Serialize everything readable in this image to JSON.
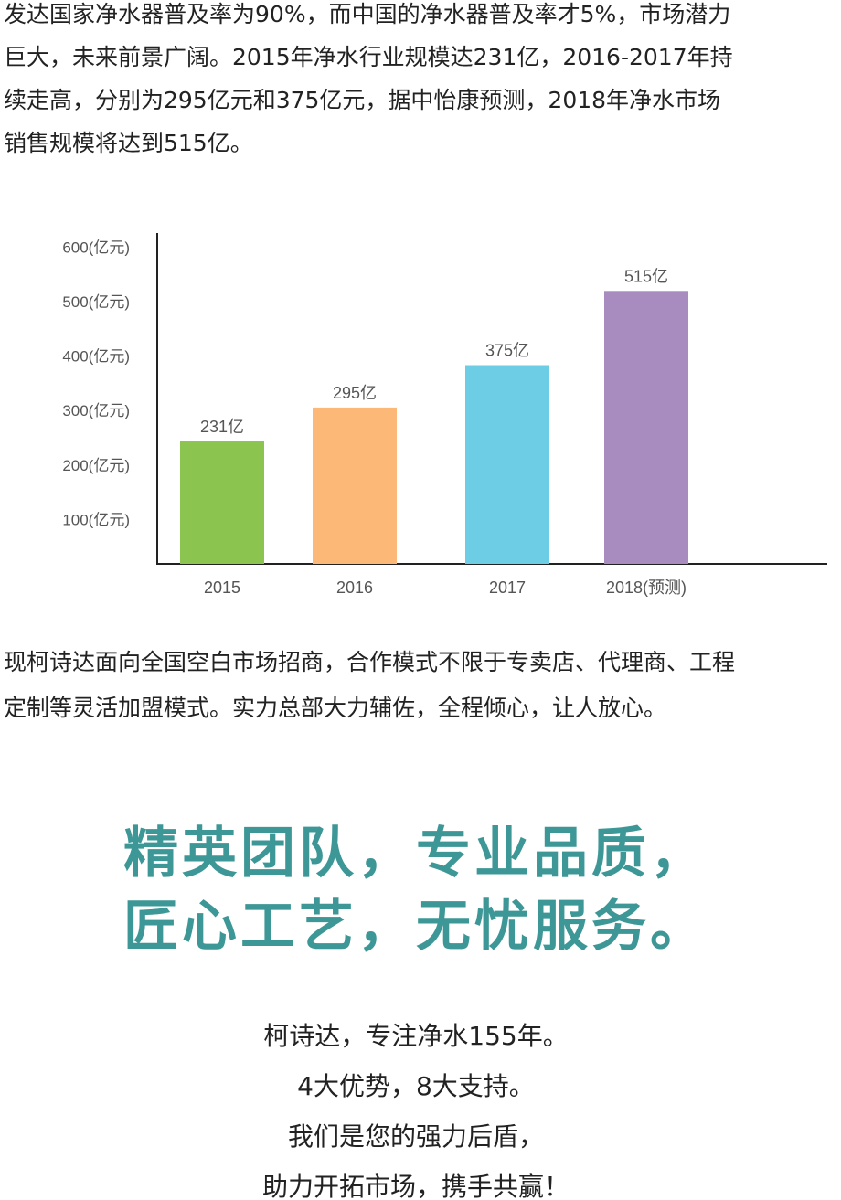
{
  "intro": {
    "lines": [
      "发达国家净水器普及率为90%，而中国的净水器普及率才5%，市场潜力",
      "巨大，未来前景广阔。2015年净水行业规模达231亿，2016-2017年持",
      "续走高，分别为295亿元和375亿元，据中怡康预测，2018年净水市场",
      "销售规模将达到515亿。"
    ]
  },
  "chart_data": {
    "type": "bar",
    "categories": [
      "2015",
      "2016",
      "2017",
      "2018(预测)"
    ],
    "values": [
      231,
      295,
      375,
      515
    ],
    "data_labels": [
      "231亿",
      "295亿",
      "375亿",
      "515亿"
    ],
    "colors": [
      "#8bc54f",
      "#fbb877",
      "#6ccde5",
      "#a88bbf"
    ],
    "y_ticks": [
      100,
      200,
      300,
      400,
      500,
      600
    ],
    "y_tick_labels": [
      "100(亿元)",
      "200(亿元)",
      "300(亿元)",
      "400(亿元)",
      "500(亿元)",
      "600(亿元)"
    ],
    "ylim": [
      0,
      600
    ],
    "grid": false,
    "legend": "none"
  },
  "recruit": {
    "lines": [
      "现柯诗达面向全国空白市场招商，合作模式不限于专卖店、代理商、工程",
      "定制等灵活加盟模式。实力总部大力辅佐，全程倾心，让人放心。"
    ]
  },
  "headline": {
    "lines": [
      "精英团队，专业品质，",
      "匠心工艺，无忧服务。"
    ],
    "color": "#3e9797"
  },
  "closing": {
    "lines": [
      "柯诗达，专注净水155年。",
      "4大优势，8大支持。",
      "我们是您的强力后盾，",
      "助力开拓市场，携手共赢！"
    ]
  }
}
